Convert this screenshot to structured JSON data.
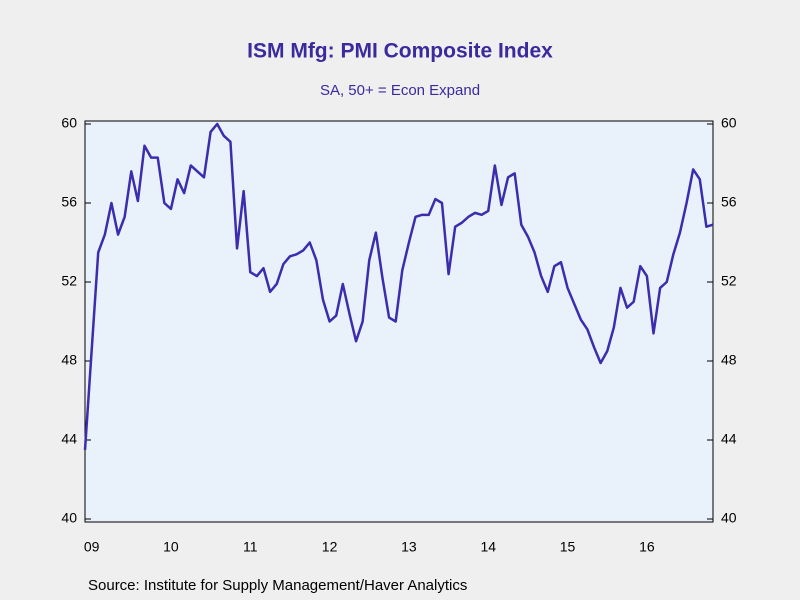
{
  "chart_data": {
    "type": "line",
    "title": "ISM Mfg: PMI Composite Index",
    "subtitle": "SA, 50+ = Econ Expand",
    "source": "Source:  Institute for Supply Management/Haver Analytics",
    "categories": [
      null,
      "09",
      null,
      null,
      null,
      null,
      null,
      null,
      null,
      null,
      null,
      null,
      null,
      "10",
      null,
      null,
      null,
      null,
      null,
      null,
      null,
      null,
      null,
      null,
      null,
      "11",
      null,
      null,
      null,
      null,
      null,
      null,
      null,
      null,
      null,
      null,
      null,
      "12",
      null,
      null,
      null,
      null,
      null,
      null,
      null,
      null,
      null,
      null,
      null,
      "13",
      null,
      null,
      null,
      null,
      null,
      null,
      null,
      null,
      null,
      null,
      null,
      "14",
      null,
      null,
      null,
      null,
      null,
      null,
      null,
      null,
      null,
      null,
      null,
      "15",
      null,
      null,
      null,
      null,
      null,
      null,
      null,
      null,
      null,
      null,
      null,
      "16",
      null,
      null,
      null,
      null,
      null,
      null,
      null,
      null,
      null,
      null
    ],
    "series": [
      {
        "name": "PMI Composite Index",
        "color": "#3c2cae",
        "values": [
          43.5,
          48.5,
          53.5,
          54.4,
          56.0,
          54.4,
          55.3,
          57.6,
          56.1,
          58.9,
          58.3,
          58.3,
          56.0,
          55.7,
          57.2,
          56.5,
          57.9,
          57.6,
          57.3,
          59.6,
          60.0,
          59.4,
          59.1,
          53.7,
          56.6,
          52.5,
          52.3,
          52.7,
          51.5,
          51.9,
          52.9,
          53.3,
          53.4,
          53.6,
          54.0,
          53.1,
          51.1,
          50.0,
          50.3,
          51.9,
          50.4,
          49.0,
          50.0,
          53.1,
          54.5,
          52.2,
          50.2,
          50.0,
          52.6,
          54.0,
          55.3,
          55.4,
          55.4,
          56.2,
          56.0,
          52.4,
          54.8,
          55.0,
          55.3,
          55.5,
          55.4,
          55.6,
          57.9,
          55.9,
          57.3,
          57.5,
          54.9,
          54.3,
          53.5,
          52.3,
          51.5,
          52.8,
          53.0,
          51.7,
          50.9,
          50.1,
          49.6,
          48.7,
          47.9,
          48.5,
          49.7,
          51.7,
          50.7,
          51.0,
          52.8,
          52.3,
          49.4,
          51.7,
          52.0,
          53.4,
          54.5,
          56.0,
          57.7,
          57.2,
          54.8,
          54.9
        ]
      }
    ],
    "ylim": [
      40,
      60
    ],
    "yticks": [
      40,
      44,
      48,
      52,
      56,
      60
    ],
    "y2lim": [
      40,
      60
    ],
    "y2ticks": [
      40,
      44,
      48,
      52,
      56,
      60
    ]
  }
}
